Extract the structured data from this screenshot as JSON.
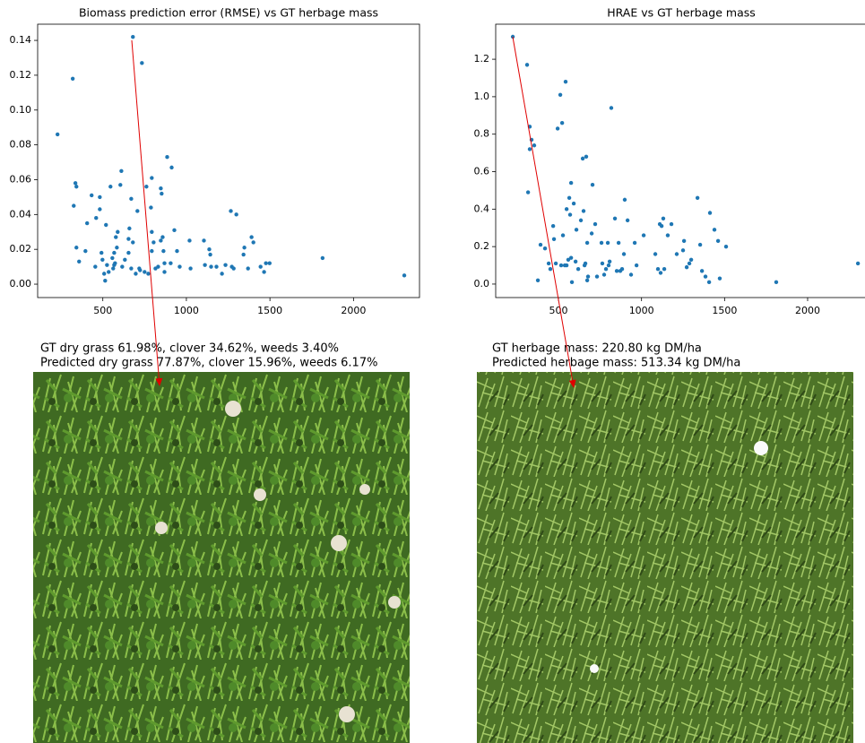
{
  "chart_data": [
    {
      "type": "scatter",
      "title": "Biomass prediction error (RMSE) vs GT herbage mass",
      "color": "#1f77b4",
      "annotations": [
        "GT dry grass 61.98%, clover 34.62%, weeds 3.40%",
        "Predicted dry grass 77.87%, clover 15.96%, weeds 6.17%"
      ],
      "xlim": [
        110,
        2395
      ],
      "xticks": [
        500,
        1000,
        1500,
        2000
      ],
      "ylim": [
        -0.0077,
        0.1493
      ],
      "yticks": [
        {
          "value": 0,
          "label": "0.00"
        },
        {
          "value": 0.02,
          "label": "0.02"
        },
        {
          "value": 0.04,
          "label": "0.04"
        },
        {
          "value": 0.06,
          "label": "0.06"
        },
        {
          "value": 0.08,
          "label": "0.08"
        },
        {
          "value": 0.1,
          "label": "0.10"
        },
        {
          "value": 0.12,
          "label": "0.12"
        },
        {
          "value": 0.14,
          "label": "0.14"
        }
      ],
      "x": [
        229,
        320,
        326,
        336,
        342,
        342,
        358,
        396,
        406,
        433,
        460,
        455,
        482,
        482,
        492,
        498,
        508,
        514,
        519,
        525,
        535,
        546,
        557,
        562,
        568,
        568,
        573,
        578,
        584,
        589,
        605,
        611,
        616,
        632,
        654,
        654,
        659,
        670,
        670,
        680,
        680,
        697,
        707,
        718,
        723,
        734,
        750,
        761,
        772,
        788,
        793,
        793,
        793,
        804,
        815,
        831,
        847,
        847,
        852,
        858,
        863,
        869,
        869,
        885,
        912,
        906,
        928,
        944,
        960,
        1019,
        1025,
        1105,
        1111,
        1137,
        1143,
        1148,
        1180,
        1213,
        1234,
        1266,
        1272,
        1283,
        1299,
        1342,
        1347,
        1369,
        1390,
        1401,
        1444,
        1465,
        1476,
        1498,
        1815,
        2304
      ],
      "values": [
        0.086,
        0.118,
        0.045,
        0.058,
        0.056,
        0.021,
        0.013,
        0.019,
        0.035,
        0.051,
        0.038,
        0.01,
        0.05,
        0.043,
        0.018,
        0.014,
        0.006,
        0.002,
        0.034,
        0.011,
        0.007,
        0.056,
        0.015,
        0.009,
        0.018,
        0.011,
        0.012,
        0.027,
        0.021,
        0.03,
        0.057,
        0.065,
        0.01,
        0.014,
        0.026,
        0.018,
        0.032,
        0.049,
        0.009,
        0.142,
        0.024,
        0.006,
        0.042,
        0.009,
        0.008,
        0.127,
        0.007,
        0.056,
        0.006,
        0.044,
        0.061,
        0.03,
        0.019,
        0.024,
        0.009,
        0.01,
        0.055,
        0.025,
        0.052,
        0.027,
        0.019,
        0.012,
        0.007,
        0.073,
        0.067,
        0.012,
        0.031,
        0.019,
        0.01,
        0.025,
        0.009,
        0.025,
        0.011,
        0.02,
        0.017,
        0.01,
        0.01,
        0.006,
        0.011,
        0.042,
        0.01,
        0.009,
        0.04,
        0.017,
        0.021,
        0.009,
        0.027,
        0.024,
        0.01,
        0.007,
        0.012,
        0.012,
        0.015,
        0.005
      ]
    },
    {
      "type": "scatter",
      "title": "HRAE vs GT herbage mass",
      "color": "#1f77b4",
      "annotations": [
        "GT herbage mass: 220.80 kg DM/ha",
        "Predicted herbage mass: 513.34 kg DM/ha"
      ],
      "xlim": [
        122,
        2421
      ],
      "xticks": [
        500,
        1000,
        1500,
        2000
      ],
      "ylim": [
        -0.072,
        1.387
      ],
      "yticks": [
        {
          "value": 0,
          "label": "0.0"
        },
        {
          "value": 0.2,
          "label": "0.2"
        },
        {
          "value": 0.4,
          "label": "0.4"
        },
        {
          "value": 0.6,
          "label": "0.6"
        },
        {
          "value": 0.8,
          "label": "0.8"
        },
        {
          "value": 1,
          "label": "1.0"
        },
        {
          "value": 1.2,
          "label": "1.2"
        }
      ],
      "x": [
        225,
        311,
        317,
        327,
        327,
        338,
        354,
        376,
        392,
        419,
        441,
        451,
        468,
        473,
        484,
        495,
        511,
        516,
        522,
        527,
        538,
        543,
        549,
        549,
        559,
        565,
        570,
        576,
        576,
        581,
        592,
        603,
        608,
        619,
        635,
        646,
        651,
        657,
        662,
        667,
        673,
        673,
        678,
        700,
        705,
        721,
        732,
        759,
        764,
        775,
        786,
        797,
        802,
        808,
        818,
        840,
        851,
        862,
        872,
        883,
        894,
        899,
        916,
        937,
        959,
        970,
        1013,
        1083,
        1099,
        1110,
        1115,
        1121,
        1131,
        1137,
        1158,
        1180,
        1212,
        1250,
        1256,
        1272,
        1288,
        1299,
        1337,
        1353,
        1364,
        1385,
        1407,
        1412,
        1439,
        1461,
        1471,
        1509,
        1811,
        2303
      ],
      "values": [
        1.32,
        1.17,
        0.49,
        0.84,
        0.72,
        0.77,
        0.74,
        0.02,
        0.21,
        0.19,
        0.11,
        0.08,
        0.31,
        0.24,
        0.11,
        0.83,
        1.01,
        0.1,
        0.86,
        0.26,
        0.1,
        1.08,
        0.4,
        0.1,
        0.13,
        0.46,
        0.37,
        0.54,
        0.14,
        0.01,
        0.43,
        0.12,
        0.29,
        0.08,
        0.34,
        0.67,
        0.39,
        0.1,
        0.11,
        0.68,
        0.02,
        0.22,
        0.04,
        0.27,
        0.53,
        0.32,
        0.04,
        0.22,
        0.11,
        0.05,
        0.08,
        0.22,
        0.1,
        0.12,
        0.94,
        0.35,
        0.07,
        0.22,
        0.07,
        0.08,
        0.16,
        0.45,
        0.34,
        0.05,
        0.22,
        0.1,
        0.26,
        0.16,
        0.08,
        0.32,
        0.06,
        0.31,
        0.35,
        0.08,
        0.26,
        0.32,
        0.16,
        0.18,
        0.23,
        0.09,
        0.11,
        0.13,
        0.46,
        0.21,
        0.07,
        0.04,
        0.01,
        0.38,
        0.29,
        0.23,
        0.03,
        0.2,
        0.01,
        0.11
      ]
    }
  ]
}
